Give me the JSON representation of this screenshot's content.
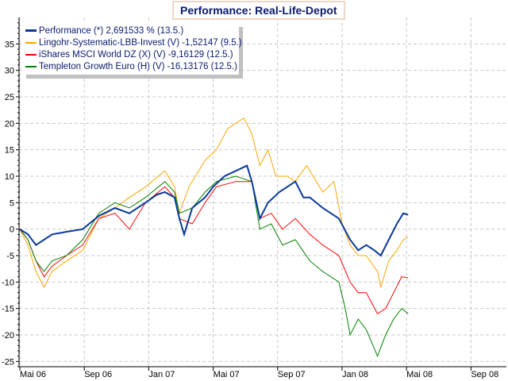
{
  "chart_data": {
    "type": "line",
    "title": "Performance: Real-Life-Depot",
    "xlabel": "",
    "ylabel": "",
    "x_unit": "months since Mai 06",
    "xlim": [
      -0.05,
      30.2
    ],
    "ylim": [
      -26,
      40
    ],
    "grid": true,
    "legend_placement": "top-left",
    "y_ticks": [
      35,
      30,
      25,
      20,
      15,
      10,
      5,
      0,
      -5,
      -10,
      -15,
      -20,
      -25
    ],
    "x_ticks": [
      {
        "label": "Mai 06",
        "m": 0
      },
      {
        "label": "Sep 06",
        "m": 4
      },
      {
        "label": "Jan 07",
        "m": 8
      },
      {
        "label": "Mai 07",
        "m": 12
      },
      {
        "label": "Sep 07",
        "m": 16
      },
      {
        "label": "Jan 08",
        "m": 20
      },
      {
        "label": "Mai 08",
        "m": 24
      },
      {
        "label": "Sep 08",
        "m": 28
      }
    ],
    "series": [
      {
        "name": "Orange",
        "legend": "Lingohr-Systematic-LBB-Invest (V) -1,52147 (9.5.)",
        "color": "#ffa500",
        "x": [
          0,
          0.5,
          1,
          1.5,
          2,
          2.9,
          3.9,
          4.9,
          5.9,
          6.8,
          7.8,
          9,
          9.6,
          9.9,
          10.5,
          11.5,
          12.2,
          12.9,
          13.9,
          14.4,
          14.9,
          15.4,
          15.9,
          16.6,
          17.1,
          17.8,
          18.8,
          19.5,
          20,
          20.5,
          21,
          21.5,
          22.2,
          22.4,
          22.9,
          23.4,
          23.8,
          24.1
        ],
        "y": [
          0,
          -3,
          -8,
          -11,
          -8,
          -6,
          -4,
          2,
          4,
          6,
          8,
          11,
          8,
          3,
          8,
          13,
          15,
          19,
          21,
          18,
          12,
          15,
          10,
          10,
          9,
          12,
          7,
          9,
          1,
          -3,
          -5,
          -5,
          -8,
          -11,
          -6,
          -4,
          -2,
          -1.5
        ]
      },
      {
        "name": "Red",
        "legend": "iShares MSCI World DZ (X) (V) -9,16129 (12.5.)",
        "color": "#ff0000",
        "x": [
          0,
          0.5,
          1,
          1.5,
          2,
          2.9,
          3.9,
          4.9,
          5.9,
          6.8,
          7.8,
          9,
          9.6,
          9.9,
          10.7,
          11.5,
          12.2,
          13.4,
          14.4,
          14.9,
          15.6,
          16.3,
          17.1,
          18,
          18.8,
          19.8,
          20.5,
          21,
          21.5,
          22.2,
          22.7,
          23.2,
          23.7,
          24.1
        ],
        "y": [
          0,
          -2,
          -6,
          -9,
          -7,
          -5,
          -3,
          2,
          3,
          0,
          5,
          8,
          6,
          2,
          1,
          5,
          8,
          9,
          9,
          2,
          3,
          0,
          2,
          -1,
          -3,
          -5,
          -10,
          -12,
          -12,
          -16,
          -15,
          -12,
          -9,
          -9.2
        ]
      },
      {
        "name": "Green",
        "legend": "Templeton Growth Euro (H) (V) -16,13176 (12.5.)",
        "color": "#008000",
        "x": [
          0,
          0.5,
          1,
          1.5,
          2,
          2.9,
          3.9,
          4.9,
          5.9,
          6.8,
          7.8,
          9,
          9.6,
          9.9,
          10.7,
          11.5,
          12.2,
          13.4,
          14.4,
          14.9,
          15.6,
          16.3,
          17.1,
          18,
          18.8,
          19.8,
          20.2,
          20.5,
          21,
          21.5,
          22.2,
          22.7,
          23.2,
          23.7,
          24.1
        ],
        "y": [
          0,
          -2,
          -6,
          -8,
          -6,
          -5,
          -2,
          3,
          5,
          4,
          6,
          9,
          7,
          3,
          4,
          7,
          9,
          10,
          9,
          0,
          1,
          -3,
          -2,
          -6,
          -8,
          -10,
          -15,
          -20,
          -17,
          -19,
          -24,
          -20,
          -17,
          -15,
          -16
        ]
      },
      {
        "name": "Performance",
        "legend": "Performance (*) 2,691533 % (13.5.)",
        "color": "#0a3a9a",
        "x": [
          0,
          0.5,
          1,
          1.5,
          2,
          2.9,
          3.9,
          4.9,
          5.9,
          6.8,
          7.8,
          8.5,
          9,
          9.6,
          9.9,
          10.2,
          10.7,
          11.5,
          12,
          12.7,
          13.4,
          14.1,
          14.4,
          14.9,
          15.4,
          16.1,
          17.1,
          17.6,
          18,
          18.8,
          19.8,
          20.5,
          21,
          21.5,
          22,
          22.4,
          22.9,
          23.4,
          23.8,
          24.1
        ],
        "y": [
          0,
          -1,
          -3,
          -2,
          -1,
          -0.5,
          0,
          2.5,
          4,
          3,
          5,
          6.5,
          7,
          6,
          2,
          -1,
          4,
          6,
          8,
          10,
          11,
          12,
          9,
          2,
          5,
          7,
          9,
          6,
          6,
          4,
          2,
          -2,
          -4,
          -3,
          -4,
          -5,
          -2,
          1,
          3,
          2.7
        ]
      }
    ],
    "legend_order": [
      "Performance",
      "Orange",
      "Red",
      "Green"
    ]
  }
}
